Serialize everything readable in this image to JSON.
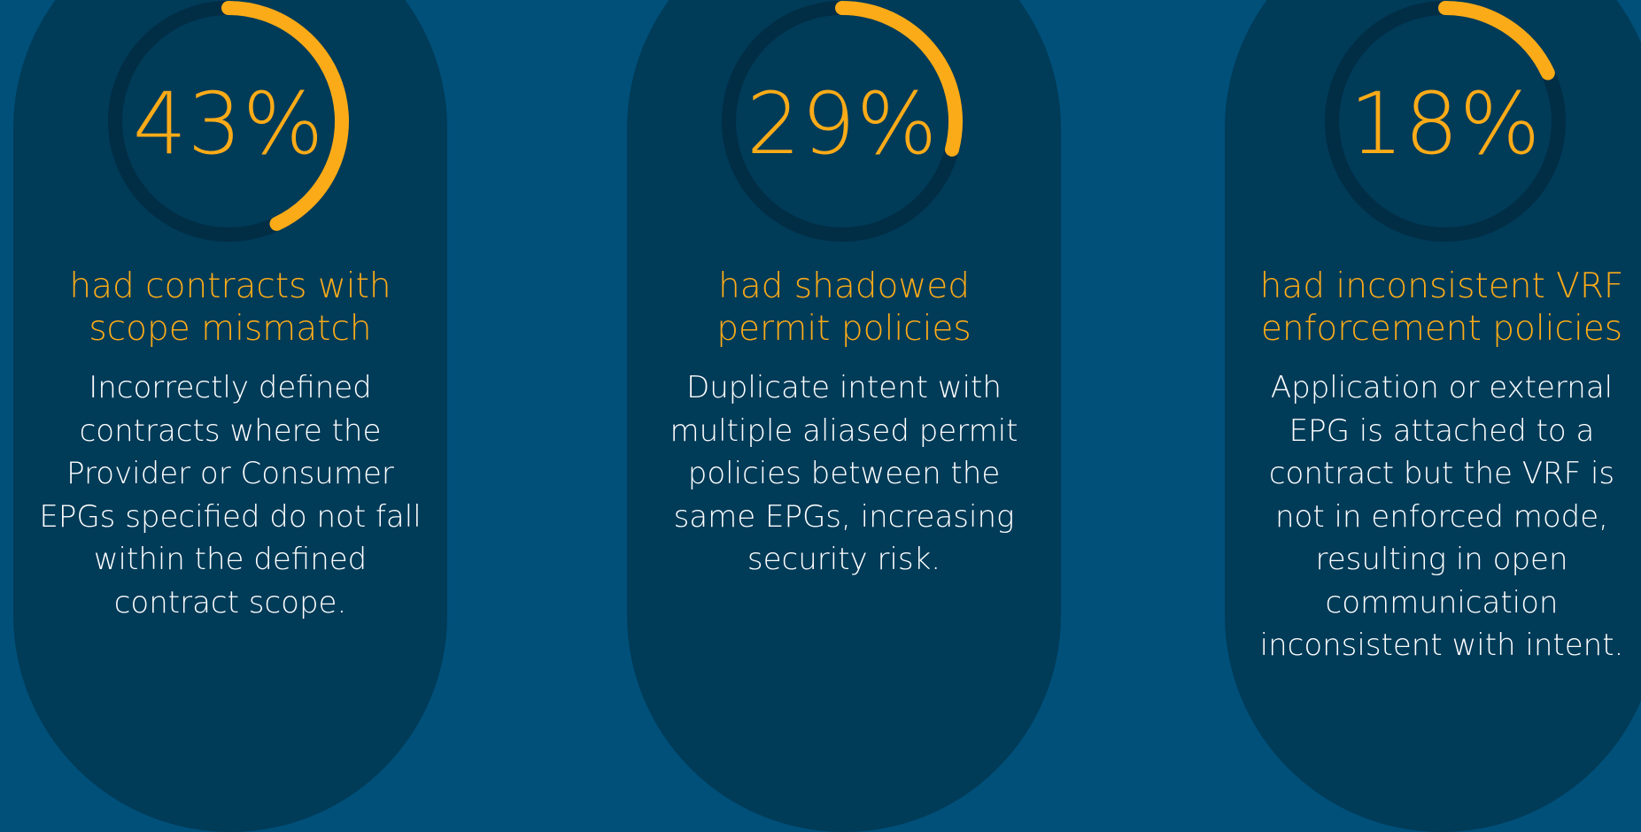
{
  "colors": {
    "background": "#00507a",
    "card": "#003b58",
    "ring_track": "#012d45",
    "accent": "#fbab18",
    "text_light": "#ffffff"
  },
  "stats": [
    {
      "value": 0.43,
      "label": "43%",
      "heading_line1": "had contracts with",
      "heading_line2": "scope mismatch",
      "description": "Incorrectly defined contracts where the Provider or Consumer EPGs specified do not fall within the defined contract scope."
    },
    {
      "value": 0.29,
      "label": "29%",
      "heading_line1": "had shadowed",
      "heading_line2": "permit policies",
      "description": "Duplicate intent with multiple aliased permit policies between the same EPGs, increasing security risk."
    },
    {
      "value": 0.18,
      "label": "18%",
      "heading_line1": "had inconsistent VRF",
      "heading_line2": "enforcement policies",
      "description": "Application or external EPG is attached to a contract but the VRF is not in enforced mode, resulting in open communication inconsistent with intent."
    }
  ]
}
